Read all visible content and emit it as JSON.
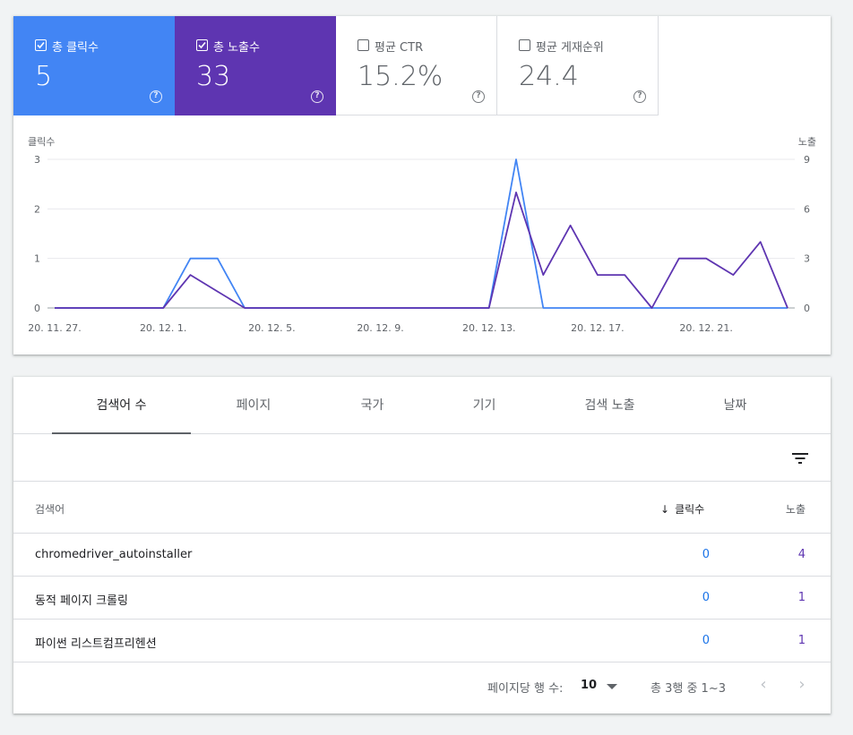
{
  "metrics": {
    "clicks": {
      "label": "총 클릭수",
      "value": "5",
      "checked": true,
      "color": "#4285f4"
    },
    "impressions": {
      "label": "총 노출수",
      "value": "33",
      "checked": true,
      "color": "#5e35b1"
    },
    "ctr": {
      "label": "평균 CTR",
      "value": "15.2%",
      "checked": false
    },
    "position": {
      "label": "평균 게재순위",
      "value": "24.4",
      "checked": false
    },
    "help_glyph": "?"
  },
  "chart_data": {
    "type": "line",
    "left_axis_label": "클릭수",
    "right_axis_label": "노출",
    "left_ticks": [
      "0",
      "1",
      "2",
      "3"
    ],
    "right_ticks": [
      "0",
      "3",
      "6",
      "9"
    ],
    "ylim_left": [
      0,
      3
    ],
    "ylim_right": [
      0,
      9
    ],
    "x_tick_labels": [
      "20. 11. 27.",
      "20. 12. 1.",
      "20. 12. 5.",
      "20. 12. 9.",
      "20. 12. 13.",
      "20. 12. 17.",
      "20. 12. 21."
    ],
    "x_tick_indices": [
      0,
      4,
      8,
      12,
      16,
      20,
      24
    ],
    "n_points": 28,
    "series": [
      {
        "name": "클릭수",
        "axis": "left",
        "color": "#4285f4",
        "values": [
          0,
          0,
          0,
          0,
          0,
          1,
          1,
          0,
          0,
          0,
          0,
          0,
          0,
          0,
          0,
          0,
          0,
          3,
          0,
          0,
          0,
          0,
          0,
          0,
          0,
          0,
          0,
          0
        ]
      },
      {
        "name": "노출",
        "axis": "right",
        "color": "#5e35b1",
        "values": [
          0,
          0,
          0,
          0,
          0,
          2,
          1,
          0,
          0,
          0,
          0,
          0,
          0,
          0,
          0,
          0,
          0,
          7,
          2,
          5,
          2,
          2,
          0,
          3,
          3,
          2,
          4,
          0
        ]
      }
    ]
  },
  "tabs": [
    "검색어 수",
    "페이지",
    "국가",
    "기기",
    "검색 노출",
    "날짜"
  ],
  "table": {
    "headers": {
      "query": "검색어",
      "clicks": "클릭수",
      "impressions": "노출"
    },
    "sort_arrow": "↓",
    "rows": [
      {
        "query": "chromedriver_autoinstaller",
        "clicks": "0",
        "impressions": "4"
      },
      {
        "query": "동적 페이지 크롤링",
        "clicks": "0",
        "impressions": "1"
      },
      {
        "query": "파이썬 리스트컴프리헨션",
        "clicks": "0",
        "impressions": "1"
      }
    ]
  },
  "pagination": {
    "rows_per_page_label": "페이지당 행 수:",
    "rows_per_page": "10",
    "range_text": "총 3행 중 1~3",
    "prev_glyph": "‹",
    "next_glyph": "›"
  }
}
